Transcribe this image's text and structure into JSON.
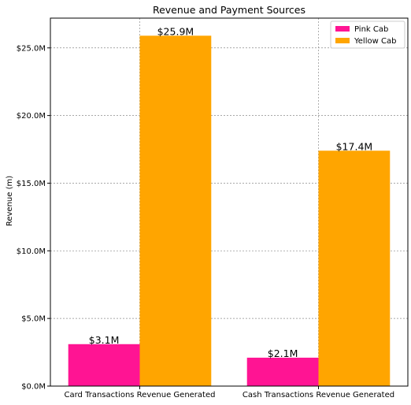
{
  "chart_data": {
    "type": "bar",
    "title": "Revenue and Payment Sources",
    "xlabel": "",
    "ylabel": "Revenue (m)",
    "categories": [
      "Card Transactions Revenue Generated",
      "Cash Transactions Revenue Generated"
    ],
    "series": [
      {
        "name": "Pink Cab",
        "color": "#ff1493",
        "values": [
          3.1,
          2.1
        ],
        "labels": [
          "$3.1M",
          "$2.1M"
        ]
      },
      {
        "name": "Yellow Cab",
        "color": "#ffa500",
        "values": [
          25.9,
          17.4
        ],
        "labels": [
          "$25.9M",
          "$17.4M"
        ]
      }
    ],
    "ylim": [
      0,
      27.2
    ],
    "yticks": [
      0,
      5,
      10,
      15,
      20,
      25
    ],
    "ytick_labels": [
      "$0.0M",
      "$5.0M",
      "$10.0M",
      "$15.0M",
      "$20.0M",
      "$25.0M"
    ],
    "grid": true,
    "legend_position": "top-right"
  }
}
